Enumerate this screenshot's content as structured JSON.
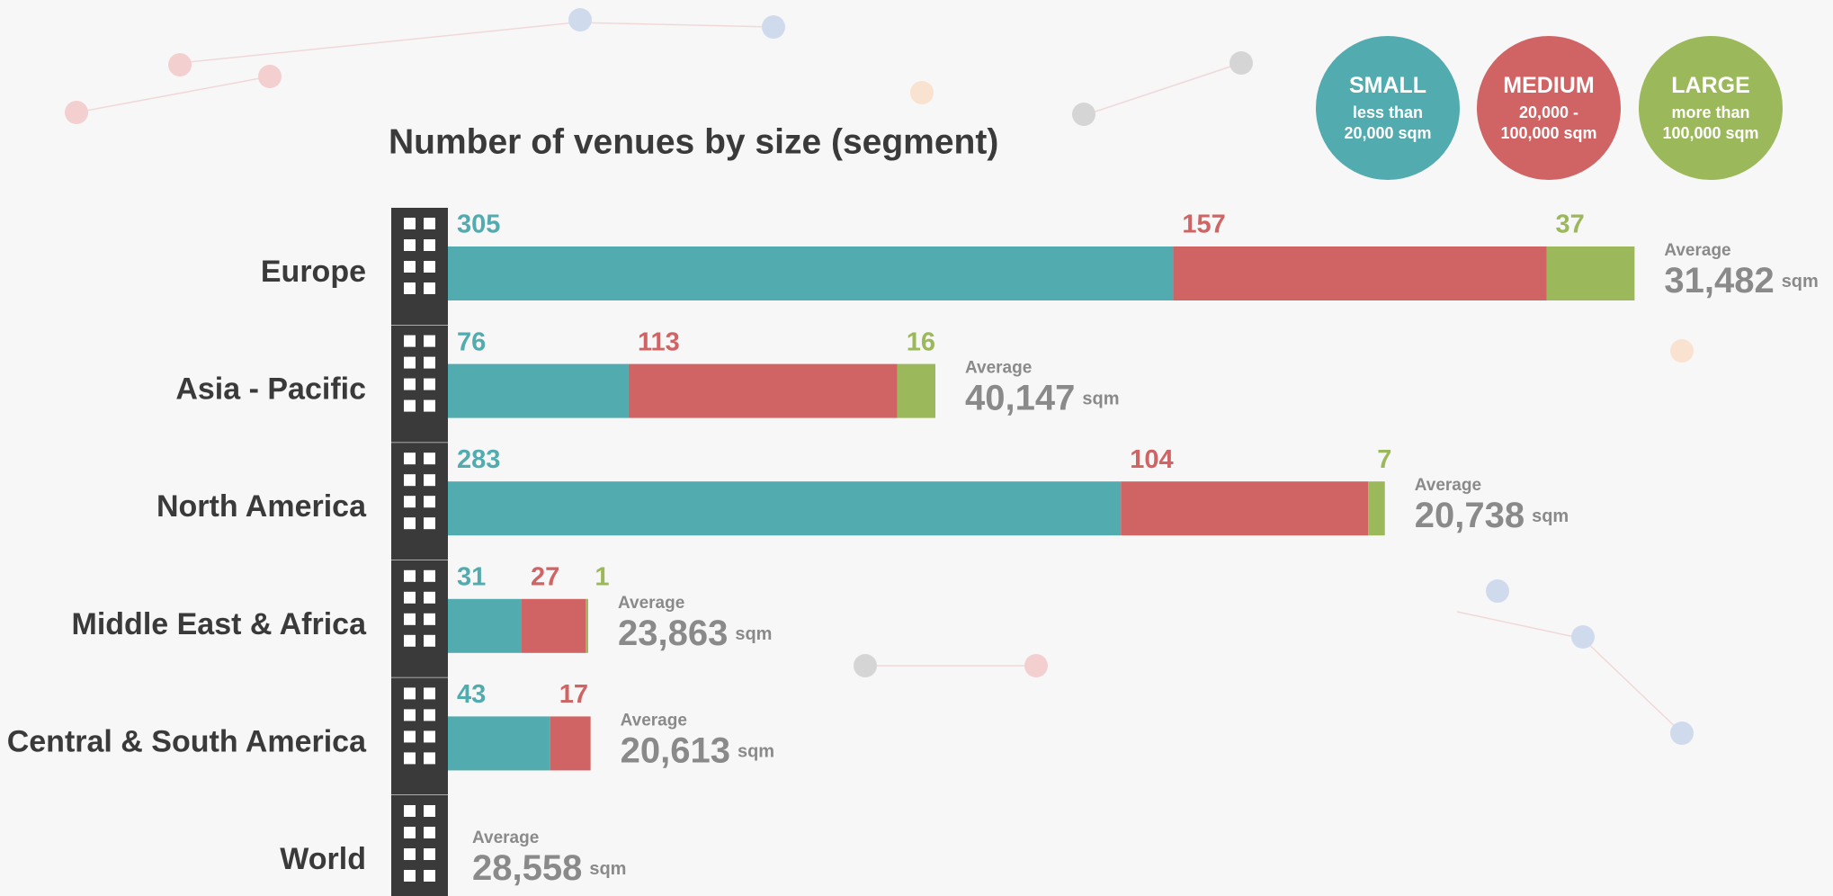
{
  "chart_data": {
    "type": "stacked-bar",
    "title": "Number of venues by size (segment)",
    "categories": [
      "Europe",
      "Asia - Pacific",
      "North America",
      "Middle East & Africa",
      "Central & South America",
      "World"
    ],
    "series": [
      {
        "name": "SMALL",
        "description": "less than 20,000 sqm",
        "color": "#52abaf",
        "values": [
          305,
          76,
          283,
          31,
          43,
          null
        ]
      },
      {
        "name": "MEDIUM",
        "description": "20,000 - 100,000 sqm",
        "color": "#d06364",
        "values": [
          157,
          113,
          104,
          27,
          17,
          null
        ]
      },
      {
        "name": "LARGE",
        "description": "more than 100,000 sqm",
        "color": "#9bb85a",
        "values": [
          37,
          16,
          7,
          1,
          null,
          null
        ]
      }
    ],
    "average_label": "Average",
    "average_unit": "sqm",
    "averages": [
      "31,482",
      "40,147",
      "20,738",
      "23,863",
      "20,613",
      "28,558"
    ]
  }
}
